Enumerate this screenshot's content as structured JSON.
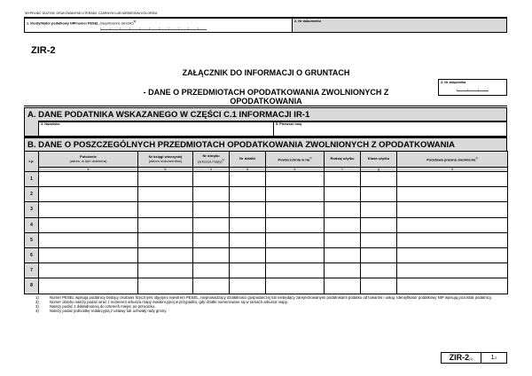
{
  "header": {
    "instruction": "WYPEŁNIĆ DUŻYMI, DRUKOWANYMI LITERAMI, CZARNYM LUB NIEBIESKIM KOLOREM.",
    "field1_label": "1. Identyfikator podatkowy NIP/numer PESEL",
    "field1_note": "(niepotrzebne skreślić)",
    "field1_sup": "1)",
    "field2_label": "2. Nr dokumentu",
    "form_code": "ZIR-2",
    "title": "ZAŁĄCZNIK DO INFORMACJI O GRUNTACH",
    "subtitle": "- DANE O PRZEDMIOTACH OPODATKOWANIA ZWOLNIONYCH Z OPODATKOWANIA",
    "field3_label": "3. Nr załącznika"
  },
  "sectionA": {
    "title": "A.  DANE PODATNIKA WSKAZANEGO W CZĘŚCI C.1 INFORMACJI IR-1",
    "field4_label": "4. Nazwisko",
    "field5_label": "5. Pierwsze imię"
  },
  "sectionB": {
    "title": "B.  DANE O POSZCZEGÓLNYCH PRZEDMIOTACH OPODATKOWANIA ZWOLNIONYCH Z OPODATKOWANIA",
    "columns": [
      {
        "bold": "Lp.",
        "normal": "",
        "sup": "",
        "letter": ""
      },
      {
        "bold": "Położenie",
        "normal": " (adres, w tym dzielnica)",
        "sup": "",
        "letter": "a"
      },
      {
        "bold": "Nr księgi wieczystej",
        "normal": "(zbioru dokumentów)",
        "sup": "",
        "letter": "b"
      },
      {
        "bold": "Nr obrębu",
        "normal": "(arkusza mapy)",
        "sup": "2)",
        "letter": "c"
      },
      {
        "bold": "Nr działki",
        "normal": "",
        "sup": "",
        "letter": "d"
      },
      {
        "bold": "Powierzchnia w ha",
        "normal": "",
        "sup": "3)",
        "letter": "e"
      },
      {
        "bold": "Rodzaj użytku",
        "normal": "",
        "sup": "",
        "letter": "f"
      },
      {
        "bold": "Klasa użytku",
        "normal": "",
        "sup": "",
        "letter": "g"
      },
      {
        "bold": "Podstawa prawna zwolnienia",
        "normal": "",
        "sup": "4)",
        "letter": "h"
      }
    ],
    "rows": [
      "1",
      "2",
      "3",
      "4",
      "5",
      "6",
      "7",
      "8"
    ]
  },
  "footnotes": [
    {
      "n": "1)",
      "text": "Numer PESEL wpisują podatnicy będący osobami fizycznymi objętymi rejestrem PESEL, nieprowadzący działalności gospodarczej lub niebędący zarejestrowanymi podatnikami podatku od towarów i usług. Identyfikator podatkowy NIP wpisują pozostali podatnicy."
    },
    {
      "n": "2)",
      "text": "Numer obrębu należy podać wraz z numerem arkusza mapy ewidencyjnej w przypadku, gdy działki numerowane są w ramach arkusza mapy."
    },
    {
      "n": "3)",
      "text": "Należy podać z dokładnością do czterech miejsc po przecinku."
    },
    {
      "n": "4)",
      "text": "Należy podać jednostkę redakcyjną z ustawy lub uchwały rady gminy."
    }
  ],
  "footer": {
    "code": "ZIR-2",
    "version": "(1)",
    "page": "1",
    "of": "/2"
  }
}
